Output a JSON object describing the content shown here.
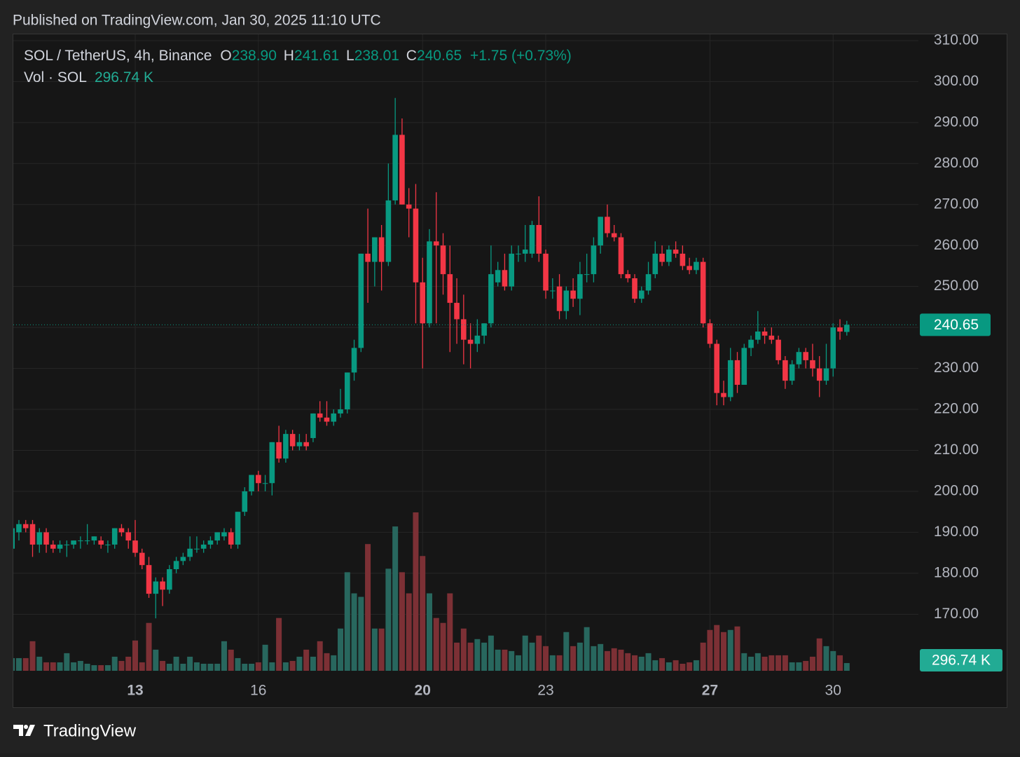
{
  "header": {
    "published": "Published on TradingView.com, Jan 30, 2025 11:10 UTC",
    "symbol": "SOL / TetherUS, 4h, Binance",
    "o_key": "O",
    "o": "238.90",
    "h_key": "H",
    "h": "241.61",
    "l_key": "L",
    "l": "238.01",
    "c_key": "C",
    "c": "240.65",
    "change": "+1.75 (+0.73%)",
    "volume_name": "Vol · SOL",
    "volume_label": "296.74 K"
  },
  "footer": {
    "brand": "TradingView"
  },
  "chart_data": {
    "type": "candlestick",
    "categories": [
      null,
      null,
      null,
      null,
      null,
      null,
      null,
      null,
      null,
      null,
      null,
      null,
      null,
      null,
      null,
      null,
      null,
      null,
      "13",
      null,
      null,
      null,
      null,
      null,
      null,
      null,
      null,
      null,
      null,
      null,
      null,
      null,
      null,
      null,
      null,
      null,
      "16",
      null,
      null,
      null,
      null,
      null,
      null,
      null,
      null,
      null,
      null,
      null,
      null,
      null,
      null,
      null,
      null,
      null,
      null,
      null,
      null,
      null,
      null,
      null,
      "20",
      null,
      null,
      null,
      null,
      null,
      null,
      null,
      null,
      null,
      null,
      null,
      null,
      null,
      null,
      null,
      null,
      null,
      "23",
      null,
      null,
      null,
      null,
      null,
      null,
      null,
      null,
      null,
      null,
      null,
      null,
      null,
      null,
      null,
      null,
      null,
      null,
      null,
      null,
      null,
      null,
      null,
      "27",
      null,
      null,
      null,
      null,
      null,
      null,
      null,
      null,
      null,
      null,
      null,
      null,
      null,
      null,
      null,
      null,
      null,
      "30",
      null,
      null
    ],
    "open": [
      186,
      190,
      192,
      192,
      187,
      190,
      187,
      186,
      187,
      187,
      188,
      188,
      188,
      188,
      187,
      187,
      191,
      190,
      188,
      185,
      182,
      175,
      178,
      176,
      181,
      183,
      184,
      186,
      186,
      187,
      188,
      189,
      190,
      187,
      195,
      200,
      204,
      202,
      202,
      212,
      208,
      214,
      211,
      212,
      213,
      219,
      218,
      217,
      219,
      220,
      229,
      235,
      258,
      256,
      262,
      256,
      271,
      287,
      270,
      269,
      251,
      241,
      261,
      260,
      253,
      246,
      242,
      237,
      236,
      238,
      241,
      251,
      254,
      250,
      258,
      258,
      258,
      265,
      258,
      249,
      250,
      244,
      249,
      247,
      253,
      253,
      260,
      267,
      263,
      262,
      253,
      252,
      247,
      249,
      253,
      258,
      256,
      259,
      258,
      255,
      254,
      256,
      241,
      236,
      224,
      223,
      232,
      226,
      235,
      237,
      239,
      238,
      237,
      232,
      227,
      231,
      234,
      232,
      230,
      227,
      230,
      240,
      238.9
    ],
    "high": [
      192,
      193,
      193,
      193,
      191,
      191,
      188,
      188,
      188,
      188,
      189,
      192,
      189,
      189,
      188,
      191,
      192,
      191,
      193,
      186,
      184,
      179,
      179,
      182,
      184,
      185,
      189,
      189,
      188,
      189,
      190,
      191,
      191,
      195,
      201,
      204,
      205,
      204,
      212,
      216,
      215,
      215,
      214,
      214,
      219,
      222,
      222,
      220,
      225,
      229,
      237,
      258,
      269,
      262,
      265,
      280,
      296,
      291,
      274,
      275,
      257,
      264,
      273,
      263,
      260,
      252,
      248,
      241,
      242,
      241,
      260,
      256,
      258,
      260,
      260,
      265,
      266,
      272,
      259,
      252,
      253,
      250,
      252,
      256,
      258,
      262,
      267,
      270,
      265,
      263,
      254,
      253,
      250,
      256,
      261,
      260,
      260,
      261,
      260,
      257,
      257,
      257,
      242,
      237,
      227,
      235,
      234,
      236,
      238,
      244,
      240,
      240,
      238,
      233,
      232,
      235,
      235,
      236,
      233,
      236,
      241,
      242,
      241.61
    ],
    "low": [
      184,
      188,
      190,
      184,
      185,
      185,
      185,
      185,
      184,
      186,
      186,
      187,
      187,
      186,
      185,
      186,
      189,
      186,
      184,
      181,
      174,
      169,
      172,
      175,
      180,
      182,
      183,
      185,
      185,
      186,
      187,
      188,
      186,
      186,
      194,
      199,
      200,
      200,
      199,
      207,
      207,
      210,
      210,
      210,
      212,
      217,
      216,
      216,
      218,
      219,
      227,
      234,
      246,
      250,
      249,
      255,
      270,
      270,
      262,
      241,
      230,
      240,
      241,
      248,
      234,
      236,
      231,
      230,
      234,
      236,
      240,
      250,
      249,
      249,
      256,
      256,
      257,
      256,
      247,
      247,
      242,
      242,
      245,
      243,
      251,
      251,
      258,
      262,
      261,
      252,
      251,
      246,
      246,
      248,
      252,
      255,
      255,
      257,
      254,
      253,
      253,
      240,
      235,
      221,
      221,
      222,
      224,
      226,
      233,
      236,
      236,
      236,
      231,
      225,
      226,
      230,
      230,
      228,
      223,
      226,
      228,
      237,
      238.01
    ],
    "close": [
      191,
      192,
      191,
      187,
      190,
      187,
      186,
      187,
      187,
      188,
      188,
      188,
      189,
      187,
      187,
      191,
      190,
      188,
      185,
      182,
      175,
      178,
      176,
      181,
      183,
      184,
      186,
      186,
      187,
      188,
      190,
      190,
      187,
      195,
      200,
      204,
      202,
      202,
      212,
      208,
      214,
      211,
      212,
      211,
      219,
      218,
      217,
      219,
      220,
      229,
      235,
      258,
      256,
      262,
      256,
      271,
      287,
      270,
      269,
      251,
      241,
      261,
      260,
      253,
      246,
      242,
      237,
      236,
      238,
      241,
      253,
      254,
      250,
      258,
      258,
      259,
      265,
      258,
      249,
      249,
      244,
      249,
      247,
      253,
      253,
      260,
      267,
      263,
      262,
      253,
      252,
      247,
      249,
      253,
      258,
      256,
      259,
      258,
      255,
      254,
      256,
      241,
      236,
      224,
      223,
      232,
      226,
      235,
      237,
      239,
      238,
      237,
      232,
      227,
      231,
      234,
      232,
      230,
      227,
      230,
      240,
      239,
      240.65
    ],
    "volume": [
      486,
      486,
      486,
      1134,
      540,
      324,
      324,
      324,
      675,
      324,
      378,
      270,
      216,
      216,
      216,
      540,
      378,
      540,
      1161,
      324,
      1836,
      810,
      378,
      270,
      540,
      270,
      540,
      324,
      270,
      270,
      270,
      1134,
      810,
      486,
      270,
      270,
      324,
      999,
      324,
      2025,
      324,
      378,
      540,
      810,
      540,
      1134,
      675,
      594,
      1620,
      3780,
      2970,
      2835,
      4860,
      1620,
      1620,
      3915,
      5535,
      3780,
      2970,
      6075,
      4401,
      2970,
      2025,
      1836,
      2970,
      1080,
      1620,
      1080,
      1215,
      1080,
      1350,
      810,
      810,
      756,
      594,
      1350,
      1080,
      1350,
      945,
      594,
      594,
      1485,
      945,
      1080,
      1674,
      945,
      1026,
      756,
      864,
      810,
      675,
      594,
      540,
      675,
      405,
      486,
      324,
      405,
      270,
      324,
      405,
      1080,
      1566,
      1755,
      1485,
      1566,
      1701,
      675,
      540,
      675,
      540,
      594,
      594,
      594,
      324,
      324,
      378,
      540,
      1242,
      945,
      756,
      594,
      296.74
    ],
    "up_color": "#089981",
    "down_color": "#f23645",
    "volume_up_color": "#28675e",
    "volume_down_color": "#7c3035",
    "ylim": [
      156.2,
      311.7
    ],
    "yticks": [
      {
        "value": 170,
        "label": "170.00"
      },
      {
        "value": 180,
        "label": "180.00"
      },
      {
        "value": 190,
        "label": "190.00"
      },
      {
        "value": 200,
        "label": "200.00"
      },
      {
        "value": 210,
        "label": "210.00"
      },
      {
        "value": 220,
        "label": "220.00"
      },
      {
        "value": 230,
        "label": "230.00"
      },
      {
        "value": 240,
        "label": "240.00"
      },
      {
        "value": 250,
        "label": "250.00"
      },
      {
        "value": 260,
        "label": "260.00"
      },
      {
        "value": 270,
        "label": "270.00"
      },
      {
        "value": 280,
        "label": "280.00"
      },
      {
        "value": 290,
        "label": "290.00"
      },
      {
        "value": 300,
        "label": "300.00"
      },
      {
        "value": 310,
        "label": "310.00"
      }
    ],
    "grid": true
  }
}
